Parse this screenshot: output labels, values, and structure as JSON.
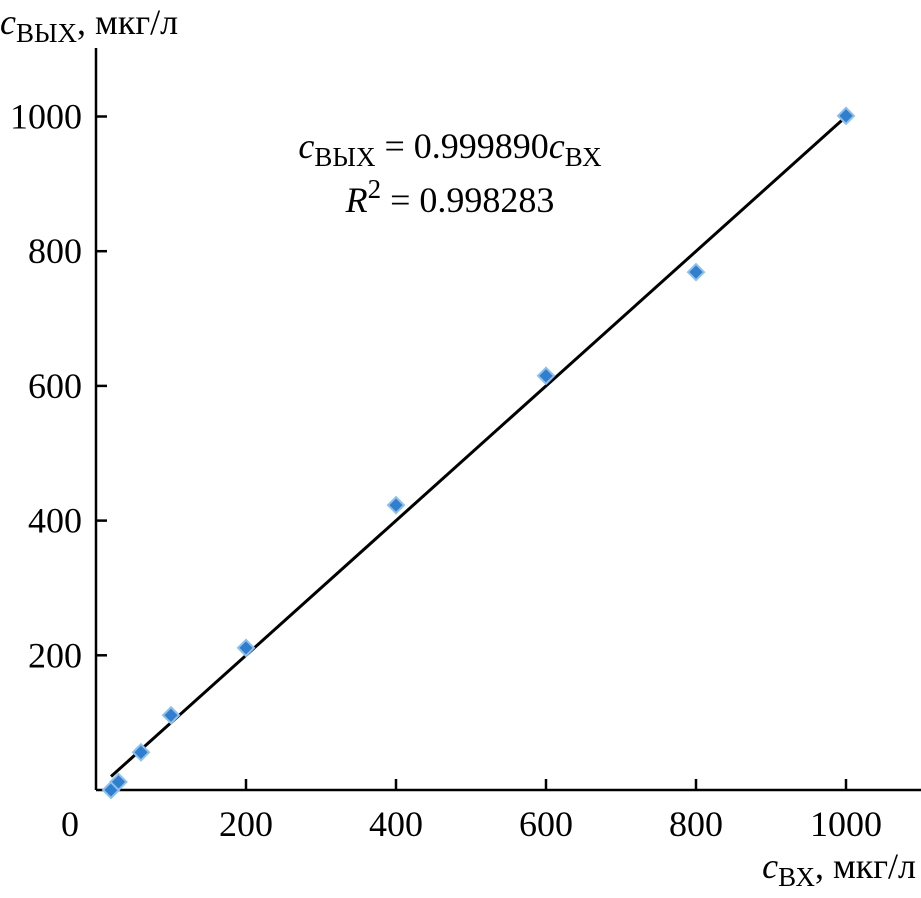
{
  "chart_data": {
    "type": "scatter",
    "xlabel": {
      "var": "c",
      "sub": "ВХ",
      "unit": ", мкг/л"
    },
    "ylabel": {
      "var": "c",
      "sub": "ВЫХ",
      "unit": ", мкг/л"
    },
    "xlim": [
      0,
      1100
    ],
    "ylim": [
      0,
      1100
    ],
    "x_ticks": [
      200,
      400,
      600,
      800,
      1000
    ],
    "y_ticks": [
      200,
      400,
      600,
      800,
      1000
    ],
    "origin_label": "0",
    "grid": false,
    "series": [
      {
        "marker": "diamond",
        "color": "#2E7FD0",
        "points": [
          {
            "x": 20,
            "y": 0
          },
          {
            "x": 30,
            "y": 12
          },
          {
            "x": 60,
            "y": 56
          },
          {
            "x": 100,
            "y": 111
          },
          {
            "x": 200,
            "y": 211
          },
          {
            "x": 400,
            "y": 423
          },
          {
            "x": 600,
            "y": 615
          },
          {
            "x": 800,
            "y": 769
          },
          {
            "x": 1000,
            "y": 1001
          }
        ]
      }
    ],
    "fit_line": {
      "slope": 0.99989,
      "intercept": 0,
      "x_range": [
        20,
        1000
      ],
      "color": "#000000"
    },
    "annotations": {
      "equation": {
        "var": "c",
        "var_sub": "ВЫХ",
        "eq": " = 0.999890",
        "var2": "c",
        "var2_sub": "ВХ"
      },
      "r2": {
        "var": "R",
        "sup": "2",
        "eq": " = 0.998283"
      }
    }
  }
}
